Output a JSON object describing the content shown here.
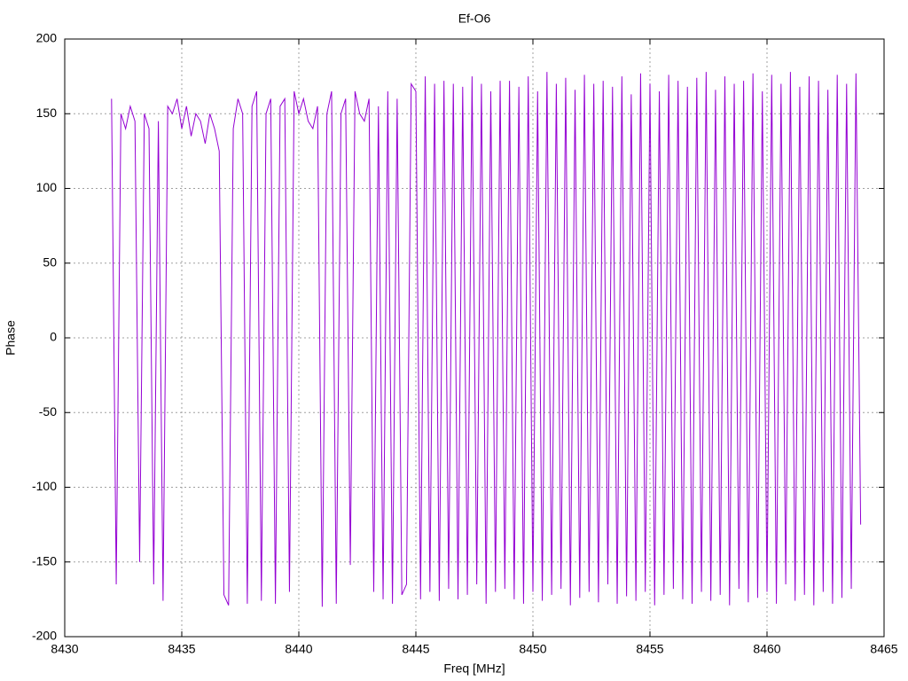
{
  "chart_data": {
    "type": "line",
    "title": "Ef-O6",
    "xlabel": "Freq [MHz]",
    "ylabel": "Phase",
    "xlim": [
      8430,
      8465
    ],
    "xticks": [
      8430,
      8435,
      8440,
      8445,
      8450,
      8455,
      8460,
      8465
    ],
    "ylim": [
      -200,
      200
    ],
    "yticks": [
      -200,
      -150,
      -100,
      -50,
      0,
      50,
      100,
      150,
      200
    ],
    "grid": true,
    "x": [
      8432,
      8432.2,
      8432.4,
      8432.6,
      8432.8,
      8433,
      8433.2,
      8433.4,
      8433.6,
      8433.8,
      8434,
      8434.2,
      8434.4,
      8434.6,
      8434.8,
      8435,
      8435.2,
      8435.4,
      8435.6,
      8435.8,
      8436,
      8436.2,
      8436.4,
      8436.6,
      8436.8,
      8437,
      8437.2,
      8437.4,
      8437.6,
      8437.8,
      8438,
      8438.2,
      8438.4,
      8438.6,
      8438.8,
      8439,
      8439.2,
      8439.4,
      8439.6,
      8439.8,
      8440,
      8440.2,
      8440.4,
      8440.6,
      8440.8,
      8441,
      8441.2,
      8441.4,
      8441.6,
      8441.8,
      8442,
      8442.2,
      8442.4,
      8442.6,
      8442.8,
      8443,
      8443.2,
      8443.4,
      8443.6,
      8443.8,
      8444,
      8444.2,
      8444.4,
      8444.6,
      8444.8,
      8445,
      8445.2,
      8445.4,
      8445.6,
      8445.8,
      8446,
      8446.2,
      8446.4,
      8446.6,
      8446.8,
      8447,
      8447.2,
      8447.4,
      8447.6,
      8447.8,
      8448,
      8448.2,
      8448.4,
      8448.6,
      8448.8,
      8449,
      8449.2,
      8449.4,
      8449.6,
      8449.8,
      8450,
      8450.2,
      8450.4,
      8450.6,
      8450.8,
      8451,
      8451.2,
      8451.4,
      8451.6,
      8451.8,
      8452,
      8452.2,
      8452.4,
      8452.6,
      8452.8,
      8453,
      8453.2,
      8453.4,
      8453.6,
      8453.8,
      8454,
      8454.2,
      8454.4,
      8454.6,
      8454.8,
      8455,
      8455.2,
      8455.4,
      8455.6,
      8455.8,
      8456,
      8456.2,
      8456.4,
      8456.6,
      8456.8,
      8457,
      8457.2,
      8457.4,
      8457.6,
      8457.8,
      8458,
      8458.2,
      8458.4,
      8458.6,
      8458.8,
      8459,
      8459.2,
      8459.4,
      8459.6,
      8459.8,
      8460,
      8460.2,
      8460.4,
      8460.6,
      8460.8,
      8461,
      8461.2,
      8461.4,
      8461.6,
      8461.8,
      8462,
      8462.2,
      8462.4,
      8462.6,
      8462.8,
      8463,
      8463.2,
      8463.4,
      8463.6,
      8463.8,
      8464
    ],
    "series": [
      {
        "color": "#9400d3",
        "values": [
          160,
          -165,
          150,
          140,
          155,
          145,
          -150,
          150,
          140,
          -165,
          145,
          -176,
          155,
          150,
          160,
          140,
          155,
          135,
          150,
          145,
          130,
          150,
          140,
          125,
          -172,
          -179,
          140,
          160,
          150,
          -178,
          155,
          165,
          -176,
          150,
          160,
          -178,
          155,
          160,
          -170,
          165,
          150,
          160,
          145,
          140,
          155,
          -180,
          150,
          165,
          -178,
          150,
          160,
          -152,
          165,
          150,
          145,
          160,
          -170,
          155,
          -175,
          165,
          -178,
          160,
          -172,
          -165,
          170,
          165,
          -175,
          175,
          -170,
          170,
          -176,
          172,
          -168,
          170,
          -175,
          168,
          -172,
          175,
          -165,
          170,
          -178,
          165,
          -170,
          172,
          -168,
          172,
          -175,
          168,
          -178,
          175,
          -170,
          165,
          -176,
          178,
          -172,
          170,
          -168,
          174,
          -179,
          166,
          -174,
          176,
          -170,
          170,
          -177,
          172,
          -165,
          168,
          -178,
          175,
          -173,
          163,
          -176,
          177,
          -170,
          170,
          -179,
          165,
          -172,
          176,
          -168,
          172,
          -175,
          168,
          -178,
          174,
          -170,
          178,
          -176,
          166,
          -172,
          175,
          -179,
          170,
          -168,
          172,
          -177,
          177,
          -174,
          165,
          -170,
          176,
          -178,
          170,
          -165,
          178,
          -176,
          168,
          -172,
          175,
          -179,
          172,
          -170,
          166,
          -178,
          176,
          -174,
          170,
          -168,
          177,
          -125
        ]
      }
    ]
  }
}
